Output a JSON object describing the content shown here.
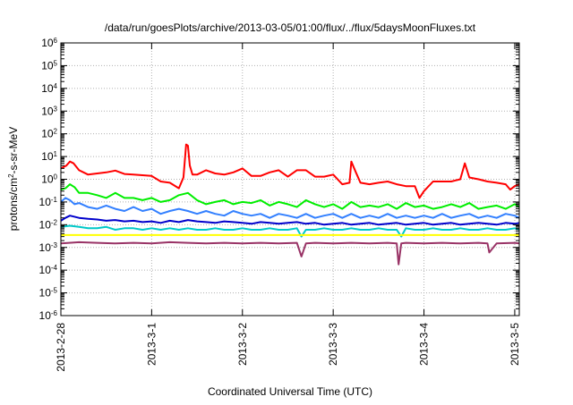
{
  "chart_data": {
    "type": "line",
    "title": "/data/run/goesPlots/archive/2013-03-05/01:00/flux/../flux/5daysMoonFluxes.txt",
    "xlabel": "Coordinated Universal Time (UTC)",
    "ylabel": {
      "prefix": "protons/cm",
      "sup": "2",
      "suffix": "-s-sr-MeV"
    },
    "yscale": "log",
    "ylim_exponents": [
      -6,
      6
    ],
    "y_ticks": [
      {
        "base": "10",
        "exp": "6"
      },
      {
        "base": "10",
        "exp": "5"
      },
      {
        "base": "10",
        "exp": "4"
      },
      {
        "base": "10",
        "exp": "3"
      },
      {
        "base": "10",
        "exp": "2"
      },
      {
        "base": "10",
        "exp": "1"
      },
      {
        "base": "10",
        "exp": "0"
      },
      {
        "base": "10",
        "exp": "-1"
      },
      {
        "base": "10",
        "exp": "-2"
      },
      {
        "base": "10",
        "exp": "-3"
      },
      {
        "base": "10",
        "exp": "-4"
      },
      {
        "base": "10",
        "exp": "-5"
      },
      {
        "base": "10",
        "exp": "-6"
      }
    ],
    "x_ticks": [
      "2013-2-28",
      "2013-3-1",
      "2013-3-2",
      "2013-3-3",
      "2013-3-4",
      "2013-3-5"
    ],
    "x_range_days": [
      0,
      5.05
    ],
    "grid": true,
    "series": [
      {
        "color": "#ff0000",
        "x": [
          0,
          0.06,
          0.1,
          0.14,
          0.2,
          0.25,
          0.3,
          0.4,
          0.5,
          0.6,
          0.7,
          0.8,
          0.9,
          1.0,
          1.1,
          1.2,
          1.3,
          1.35,
          1.38,
          1.4,
          1.42,
          1.45,
          1.5,
          1.6,
          1.7,
          1.8,
          1.9,
          2.0,
          2.1,
          2.2,
          2.3,
          2.4,
          2.5,
          2.6,
          2.7,
          2.8,
          2.9,
          3.0,
          3.1,
          3.18,
          3.2,
          3.25,
          3.3,
          3.4,
          3.5,
          3.6,
          3.7,
          3.8,
          3.9,
          3.95,
          4.0,
          4.1,
          4.2,
          4.3,
          4.4,
          4.45,
          4.5,
          4.6,
          4.7,
          4.8,
          4.9,
          4.95,
          5.0,
          5.05
        ],
        "y": [
          3,
          4,
          6,
          5,
          2.5,
          2,
          1.6,
          1.8,
          2,
          2.4,
          1.7,
          1.6,
          1.5,
          1.4,
          0.8,
          0.7,
          0.4,
          1.2,
          34,
          30,
          4,
          1.6,
          1.6,
          2.5,
          1.8,
          1.6,
          2,
          3,
          1.4,
          1.4,
          2,
          2.5,
          1.3,
          2.5,
          2.5,
          1.3,
          1.3,
          1.6,
          0.6,
          0.7,
          6,
          2,
          0.7,
          0.6,
          0.7,
          0.8,
          0.6,
          0.5,
          0.5,
          0.15,
          0.3,
          0.8,
          0.8,
          0.8,
          1.0,
          5,
          1.2,
          1,
          0.8,
          0.7,
          0.6,
          0.35,
          0.5,
          0.6
        ]
      },
      {
        "color": "#00ee00",
        "x": [
          0,
          0.05,
          0.1,
          0.15,
          0.2,
          0.3,
          0.4,
          0.5,
          0.6,
          0.7,
          0.8,
          0.9,
          1.0,
          1.1,
          1.2,
          1.3,
          1.4,
          1.5,
          1.6,
          1.7,
          1.8,
          1.9,
          2.0,
          2.1,
          2.2,
          2.3,
          2.4,
          2.5,
          2.6,
          2.7,
          2.8,
          2.9,
          3.0,
          3.1,
          3.2,
          3.3,
          3.4,
          3.5,
          3.6,
          3.7,
          3.8,
          3.9,
          4.0,
          4.1,
          4.2,
          4.3,
          4.4,
          4.5,
          4.6,
          4.7,
          4.8,
          4.9,
          5.0,
          5.05
        ],
        "y": [
          0.35,
          0.4,
          0.6,
          0.45,
          0.25,
          0.25,
          0.2,
          0.15,
          0.25,
          0.15,
          0.15,
          0.12,
          0.15,
          0.1,
          0.12,
          0.2,
          0.25,
          0.12,
          0.08,
          0.1,
          0.12,
          0.08,
          0.1,
          0.09,
          0.12,
          0.07,
          0.1,
          0.08,
          0.06,
          0.12,
          0.08,
          0.06,
          0.08,
          0.05,
          0.1,
          0.06,
          0.07,
          0.06,
          0.08,
          0.05,
          0.09,
          0.06,
          0.07,
          0.05,
          0.06,
          0.08,
          0.06,
          0.09,
          0.05,
          0.06,
          0.07,
          0.05,
          0.08,
          0.06
        ]
      },
      {
        "color": "#3380ff",
        "x": [
          0,
          0.05,
          0.1,
          0.15,
          0.2,
          0.3,
          0.4,
          0.5,
          0.6,
          0.7,
          0.8,
          0.9,
          1.0,
          1.1,
          1.2,
          1.3,
          1.4,
          1.5,
          1.6,
          1.7,
          1.8,
          1.9,
          2.0,
          2.1,
          2.2,
          2.3,
          2.4,
          2.5,
          2.6,
          2.7,
          2.8,
          2.9,
          3.0,
          3.1,
          3.2,
          3.3,
          3.4,
          3.5,
          3.6,
          3.7,
          3.8,
          3.9,
          4.0,
          4.1,
          4.2,
          4.3,
          4.4,
          4.5,
          4.6,
          4.7,
          4.8,
          4.9,
          5.0,
          5.05
        ],
        "y": [
          0.1,
          0.15,
          0.12,
          0.08,
          0.09,
          0.06,
          0.05,
          0.07,
          0.05,
          0.04,
          0.06,
          0.04,
          0.05,
          0.03,
          0.04,
          0.05,
          0.04,
          0.03,
          0.04,
          0.03,
          0.025,
          0.04,
          0.03,
          0.025,
          0.03,
          0.02,
          0.03,
          0.025,
          0.02,
          0.03,
          0.02,
          0.025,
          0.03,
          0.02,
          0.03,
          0.02,
          0.025,
          0.02,
          0.03,
          0.02,
          0.025,
          0.02,
          0.025,
          0.02,
          0.03,
          0.02,
          0.025,
          0.03,
          0.02,
          0.025,
          0.02,
          0.03,
          0.025,
          0.02
        ]
      },
      {
        "color": "#0000cc",
        "x": [
          0,
          0.05,
          0.1,
          0.2,
          0.3,
          0.4,
          0.5,
          0.6,
          0.7,
          0.8,
          0.9,
          1.0,
          1.1,
          1.2,
          1.3,
          1.4,
          1.5,
          1.6,
          1.7,
          1.8,
          1.9,
          2.0,
          2.1,
          2.2,
          2.3,
          2.4,
          2.5,
          2.6,
          2.7,
          2.8,
          2.9,
          3.0,
          3.1,
          3.2,
          3.3,
          3.4,
          3.5,
          3.6,
          3.7,
          3.8,
          3.9,
          4.0,
          4.1,
          4.2,
          4.3,
          4.4,
          4.5,
          4.6,
          4.7,
          4.8,
          4.9,
          5.0,
          5.05
        ],
        "y": [
          0.015,
          0.02,
          0.025,
          0.02,
          0.018,
          0.017,
          0.015,
          0.016,
          0.014,
          0.015,
          0.013,
          0.014,
          0.012,
          0.015,
          0.013,
          0.016,
          0.014,
          0.013,
          0.012,
          0.014,
          0.013,
          0.012,
          0.011,
          0.013,
          0.012,
          0.011,
          0.012,
          0.013,
          0.011,
          0.012,
          0.01,
          0.011,
          0.012,
          0.01,
          0.011,
          0.012,
          0.01,
          0.011,
          0.012,
          0.01,
          0.011,
          0.012,
          0.01,
          0.011,
          0.012,
          0.01,
          0.011,
          0.012,
          0.011,
          0.01,
          0.012,
          0.011,
          0.012
        ]
      },
      {
        "color": "#00c8c8",
        "x": [
          0,
          0.1,
          0.2,
          0.3,
          0.4,
          0.5,
          0.6,
          0.7,
          0.8,
          0.9,
          1.0,
          1.1,
          1.2,
          1.3,
          1.4,
          1.5,
          1.6,
          1.7,
          1.8,
          1.9,
          2.0,
          2.1,
          2.2,
          2.3,
          2.4,
          2.5,
          2.6,
          2.65,
          2.7,
          2.8,
          2.9,
          3.0,
          3.1,
          3.2,
          3.3,
          3.4,
          3.5,
          3.6,
          3.7,
          3.75,
          3.8,
          3.9,
          4.0,
          4.1,
          4.2,
          4.3,
          4.4,
          4.5,
          4.6,
          4.7,
          4.8,
          4.9,
          5.0,
          5.05
        ],
        "y": [
          0.008,
          0.009,
          0.008,
          0.007,
          0.007,
          0.008,
          0.006,
          0.007,
          0.007,
          0.006,
          0.007,
          0.006,
          0.007,
          0.006,
          0.007,
          0.006,
          0.006,
          0.007,
          0.006,
          0.006,
          0.007,
          0.006,
          0.006,
          0.007,
          0.006,
          0.006,
          0.007,
          0.003,
          0.006,
          0.006,
          0.007,
          0.006,
          0.006,
          0.007,
          0.006,
          0.006,
          0.007,
          0.006,
          0.006,
          0.003,
          0.007,
          0.006,
          0.006,
          0.007,
          0.006,
          0.006,
          0.007,
          0.006,
          0.006,
          0.007,
          0.006,
          0.006,
          0.007,
          0.006
        ]
      },
      {
        "color": "#ffff00",
        "x": [
          0,
          5.05
        ],
        "y": [
          0.0035,
          0.0035
        ]
      },
      {
        "color": "#993366",
        "x": [
          0,
          0.2,
          0.4,
          0.6,
          0.8,
          1.0,
          1.2,
          1.4,
          1.6,
          1.8,
          2.0,
          2.2,
          2.4,
          2.6,
          2.65,
          2.7,
          2.8,
          3.0,
          3.2,
          3.4,
          3.6,
          3.7,
          3.72,
          3.75,
          3.8,
          4.0,
          4.2,
          4.4,
          4.6,
          4.7,
          4.72,
          4.8,
          5.0,
          5.05
        ],
        "y": [
          0.0015,
          0.0017,
          0.0016,
          0.0015,
          0.0016,
          0.0015,
          0.0017,
          0.0016,
          0.0015,
          0.0016,
          0.0015,
          0.0016,
          0.0015,
          0.0016,
          0.0004,
          0.0015,
          0.0016,
          0.0015,
          0.0016,
          0.0015,
          0.0016,
          0.0015,
          0.00018,
          0.0015,
          0.0016,
          0.0015,
          0.0016,
          0.0015,
          0.0016,
          0.0015,
          0.0006,
          0.0015,
          0.0016,
          0.0015
        ]
      }
    ]
  }
}
